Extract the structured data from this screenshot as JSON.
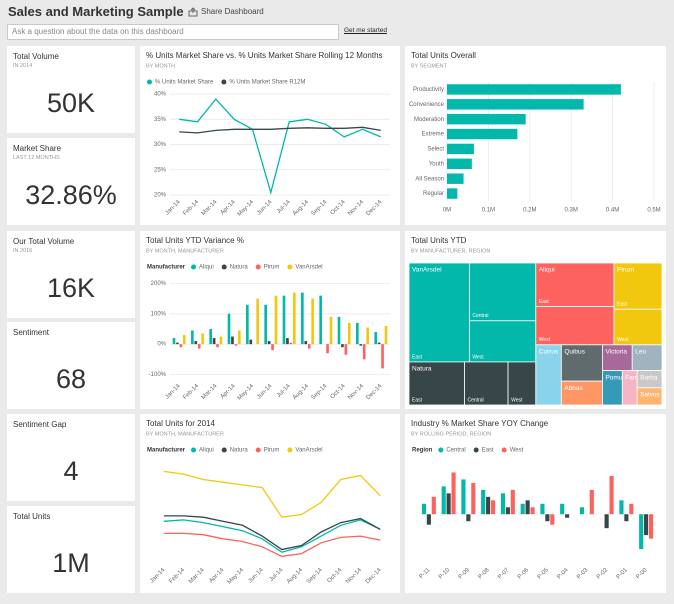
{
  "header": {
    "title": "Sales and Marketing Sample",
    "share": "Share Dashboard",
    "qna_placeholder": "Ask a question about the data on this dashboard",
    "get_started": "Get me started"
  },
  "cards": [
    {
      "title": "Total Volume",
      "subtitle": "IN 2014",
      "value": "50K"
    },
    {
      "title": "Market Share",
      "subtitle": "LAST 12 MONTHS",
      "value": "32.86%"
    },
    {
      "title": "Our Total Volume",
      "subtitle": "IN 2016",
      "value": "16K"
    },
    {
      "title": "Sentiment",
      "value": "68"
    },
    {
      "title": "Sentiment Gap",
      "value": "4"
    },
    {
      "title": "Total Units",
      "value": "1M"
    }
  ],
  "chart_data": [
    {
      "type": "line",
      "title": "% Units Market Share vs. % Units Market Share Rolling 12 Months",
      "subtitle": "BY MONTH",
      "x": [
        "Jan-14",
        "Feb-14",
        "Mar-14",
        "Apr-14",
        "May-14",
        "Jun-14",
        "Jul-14",
        "Aug-14",
        "Sep-14",
        "Oct-14",
        "Nov-14",
        "Dec-14"
      ],
      "series": [
        {
          "name": "% Units Market Share",
          "color": "#01b8aa",
          "values": [
            35,
            34.5,
            39,
            35,
            33,
            20.5,
            34.5,
            35,
            34,
            31.5,
            33,
            31.5
          ]
        },
        {
          "name": "% Units Market Share R12M",
          "color": "#374649",
          "values": [
            32.5,
            32.3,
            32.8,
            33,
            33,
            33,
            33.2,
            33.3,
            33.2,
            33.2,
            33.4,
            32.8
          ]
        }
      ],
      "ylim": [
        20,
        40
      ],
      "yticks": [
        {
          "value": 20,
          "label": "20%"
        },
        {
          "value": 25,
          "label": "25%"
        },
        {
          "value": 30,
          "label": "30%"
        },
        {
          "value": 35,
          "label": "35%"
        },
        {
          "value": 40,
          "label": "40%"
        }
      ],
      "grid": true
    },
    {
      "type": "hbar",
      "title": "Total Units Overall",
      "subtitle": "BY SEGMENT",
      "categories": [
        "Productivity",
        "Convenience",
        "Moderation",
        "Extreme",
        "Select",
        "Youth",
        "All Season",
        "Regular"
      ],
      "values": [
        420000,
        330000,
        190000,
        170000,
        65000,
        60000,
        40000,
        25000
      ],
      "color": "#01b8aa",
      "xlim": [
        0,
        500000
      ],
      "xticks": [
        {
          "value": 0,
          "label": "0M"
        },
        {
          "value": 100000,
          "label": "0.1M"
        },
        {
          "value": 200000,
          "label": "0.2M"
        },
        {
          "value": 300000,
          "label": "0.3M"
        },
        {
          "value": 400000,
          "label": "0.4M"
        },
        {
          "value": 500000,
          "label": "0.5M"
        }
      ],
      "grid": true
    },
    {
      "type": "bar",
      "title": "Total Units YTD Variance %",
      "subtitle": "BY MONTH, MANUFACTURER",
      "legend_title": "Manufacturer",
      "categories": [
        "Jan-14",
        "Feb-14",
        "Mar-14",
        "Apr-14",
        "May-14",
        "Jun-14",
        "Jul-14",
        "Aug-14",
        "Sep-14",
        "Oct-14",
        "Nov-14",
        "Dec-14"
      ],
      "series": [
        {
          "name": "Aliqui",
          "color": "#01b8aa",
          "values": [
            20,
            45,
            50,
            100,
            130,
            130,
            160,
            170,
            160,
            90,
            70,
            40
          ]
        },
        {
          "name": "Natura",
          "color": "#374649",
          "values": [
            5,
            10,
            20,
            25,
            15,
            10,
            20,
            10,
            0,
            -10,
            -5,
            5
          ]
        },
        {
          "name": "Pirum",
          "color": "#fd625e",
          "values": [
            -10,
            -15,
            -10,
            -5,
            0,
            -20,
            5,
            -15,
            -30,
            -35,
            -50,
            -80
          ]
        },
        {
          "name": "VanArsdel",
          "color": "#f2c80f",
          "values": [
            30,
            35,
            25,
            45,
            150,
            160,
            170,
            150,
            90,
            70,
            55,
            60
          ]
        }
      ],
      "ylim": [
        -115,
        215
      ],
      "yticks": [
        {
          "value": -100,
          "label": "-100%"
        },
        {
          "value": 0,
          "label": "0%"
        },
        {
          "value": 100,
          "label": "100%"
        },
        {
          "value": 200,
          "label": "200%"
        }
      ],
      "grid": true
    },
    {
      "type": "treemap",
      "title": "Total Units YTD",
      "subtitle": "BY MANUFACTURER, REGION",
      "items": [
        {
          "name": "VanArsdel",
          "color": "#01b8aa",
          "regions": [
            {
              "name": "East",
              "value": 7000
            },
            {
              "name": "Central",
              "value": 4500
            },
            {
              "name": "West",
              "value": 3200
            }
          ]
        },
        {
          "name": "Natura",
          "color": "#374649",
          "regions": [
            {
              "name": "East",
              "value": 2800
            },
            {
              "name": "Central",
              "value": 2200
            },
            {
              "name": "West",
              "value": 1400
            }
          ]
        },
        {
          "name": "Aliqui",
          "color": "#fd625e",
          "regions": [
            {
              "name": "East",
              "value": 4000
            },
            {
              "name": "West",
              "value": 3500
            }
          ]
        },
        {
          "name": "Pirum",
          "color": "#f2c80f",
          "regions": [
            {
              "name": "East",
              "value": 2600
            },
            {
              "name": "West",
              "value": 2000
            }
          ]
        },
        {
          "name": "Currus",
          "color": "#8ad4eb",
          "value": 1800
        },
        {
          "name": "Quibus",
          "color": "#5f6b6d",
          "value": 1750
        },
        {
          "name": "Abbas",
          "color": "#fe9666",
          "value": 1150
        },
        {
          "name": "Victoria",
          "color": "#a66999",
          "value": 900
        },
        {
          "name": "Leo",
          "color": "#a0b4c0",
          "value": 900
        },
        {
          "name": "Pomum",
          "color": "#3599b8",
          "value": 800
        },
        {
          "name": "Fama",
          "color": "#f5b5c5",
          "value": 600
        },
        {
          "name": "Barba",
          "color": "#c8c8c8",
          "value": 500
        },
        {
          "name": "Salvus",
          "color": "#ffb570",
          "value": 500
        }
      ]
    },
    {
      "type": "line",
      "title": "Total Units for 2014",
      "subtitle": "BY MONTH, MANUFACTURER",
      "legend_title": "Manufacturer",
      "x": [
        "Jan-14",
        "Feb-14",
        "Mar-14",
        "Apr-14",
        "May-14",
        "Jun-14",
        "Jul-14",
        "Aug-14",
        "Sep-14",
        "Oct-14",
        "Nov-14",
        "Dec-14"
      ],
      "series": [
        {
          "name": "Aliqui",
          "color": "#01b8aa",
          "values": [
            31,
            32,
            30,
            27,
            24,
            18,
            8,
            12,
            20,
            28,
            32,
            25
          ]
        },
        {
          "name": "Natura",
          "color": "#374649",
          "values": [
            35,
            35,
            34,
            31,
            28,
            20,
            10,
            13,
            23,
            30,
            33,
            25
          ]
        },
        {
          "name": "Pirum",
          "color": "#fd625e",
          "values": [
            22,
            22,
            21,
            18,
            16,
            12,
            5,
            7,
            15,
            19,
            20,
            17
          ]
        },
        {
          "name": "VanArsdel",
          "color": "#f2c80f",
          "values": [
            68,
            66,
            62,
            60,
            58,
            56,
            34,
            36,
            45,
            62,
            65,
            50
          ]
        }
      ],
      "ylim": [
        0,
        75
      ],
      "grid": false
    },
    {
      "type": "bar",
      "title": "Industry % Market Share YOY Change",
      "subtitle": "BY ROLLING PERIOD, REGION",
      "legend_title": "Region",
      "categories": [
        "P-11",
        "P-10",
        "P-09",
        "P-08",
        "P-07",
        "P-06",
        "P-05",
        "P-04",
        "P-03",
        "P-02",
        "P-01",
        "P-00"
      ],
      "series": [
        {
          "name": "Central",
          "color": "#01b8aa",
          "values": [
            3,
            8,
            10,
            7,
            6,
            3,
            3,
            3,
            2,
            0,
            4,
            -10
          ]
        },
        {
          "name": "East",
          "color": "#374649",
          "values": [
            -3,
            6,
            -2,
            5,
            2,
            4,
            -2,
            -1,
            0,
            -4,
            -2,
            -6
          ]
        },
        {
          "name": "West",
          "color": "#fd625e",
          "values": [
            5,
            12,
            9,
            4,
            7,
            2,
            -3,
            0,
            7,
            11,
            3,
            -7
          ]
        }
      ],
      "ylim": [
        -14,
        15
      ],
      "grid": false
    }
  ]
}
